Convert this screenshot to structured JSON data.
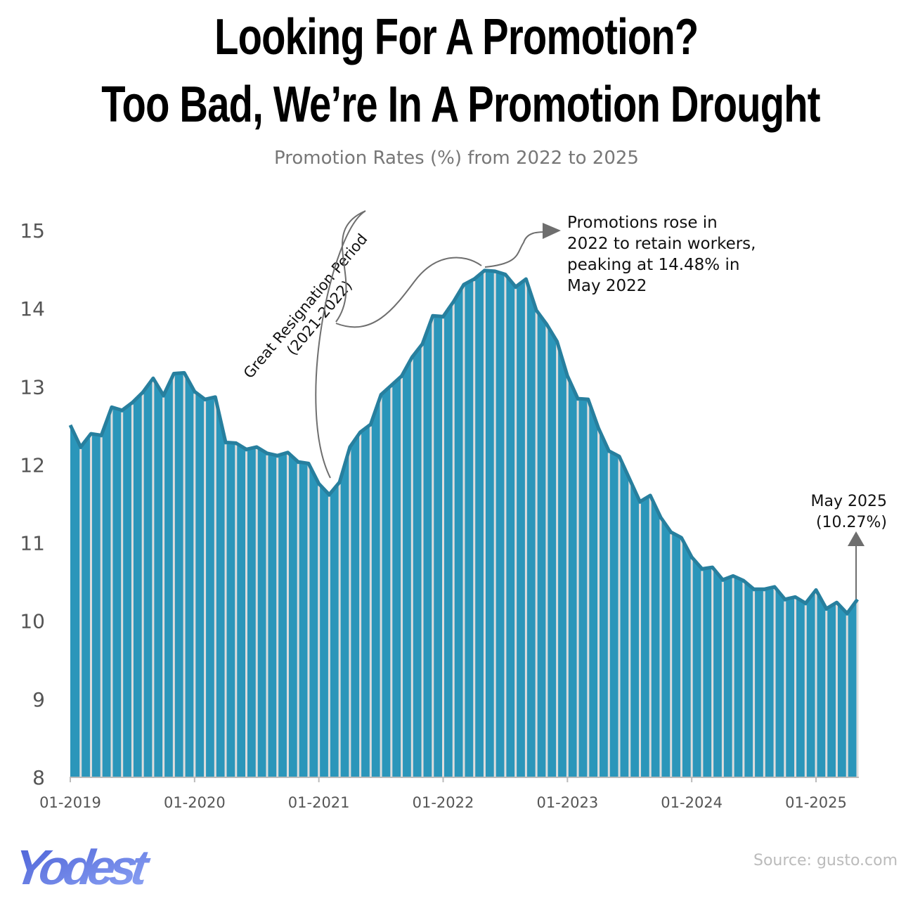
{
  "title_line1": "Looking For A Promotion?",
  "title_line2": "Too Bad, We’re In A Promotion Drought",
  "subtitle": "Promotion Rates (%) from 2022 to 2025",
  "source": "Source: gusto.com",
  "logo": "Yodest",
  "colors": {
    "area_fill": "#2b96ba",
    "area_stroke": "#277f9e",
    "month_lines": "#dddddd",
    "annotation": "#6e6e6e"
  },
  "chart_data": {
    "type": "area",
    "title": "Promotion Rates (%) from 2022 to 2025",
    "xlabel": "",
    "ylabel": "",
    "ylim": [
      8,
      15
    ],
    "yticks": [
      "8",
      "9",
      "10",
      "11",
      "12",
      "13",
      "14",
      "15"
    ],
    "xticks": [
      "01-2019",
      "01-2020",
      "01-2021",
      "01-2022",
      "01-2023",
      "01-2024",
      "01-2025"
    ],
    "x_start": "01-2019",
    "x_end": "05-2025",
    "grid": false,
    "values": [
      12.5,
      12.22,
      12.39,
      12.37,
      12.73,
      12.69,
      12.79,
      12.92,
      13.1,
      12.88,
      13.16,
      13.17,
      12.93,
      12.83,
      12.86,
      12.28,
      12.27,
      12.19,
      12.22,
      12.14,
      12.11,
      12.15,
      12.03,
      12.01,
      11.75,
      11.61,
      11.77,
      12.22,
      12.41,
      12.51,
      12.89,
      13.01,
      13.13,
      13.37,
      13.54,
      13.9,
      13.89,
      14.08,
      14.3,
      14.37,
      14.48,
      14.47,
      14.43,
      14.27,
      14.37,
      13.97,
      13.79,
      13.57,
      13.13,
      12.84,
      12.83,
      12.46,
      12.17,
      12.1,
      11.81,
      11.52,
      11.6,
      11.32,
      11.13,
      11.06,
      10.81,
      10.66,
      10.68,
      10.52,
      10.57,
      10.51,
      10.4,
      10.4,
      10.43,
      10.27,
      10.3,
      10.22,
      10.39,
      10.15,
      10.23,
      10.09,
      10.27
    ],
    "annotations": {
      "period": [
        "Great Resignation Period",
        "(2021-2022)"
      ],
      "peak": [
        "Promotions rose in",
        "2022 to retain workers,",
        "peaking at 14.48% in",
        "May 2022"
      ],
      "latest": [
        "May 2025",
        "(10.27%)"
      ]
    }
  }
}
